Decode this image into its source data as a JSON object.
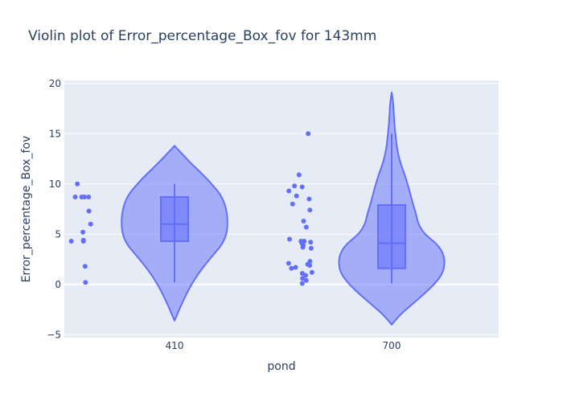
{
  "chart_data": {
    "type": "violin",
    "title": "Violin plot of Error_percentage_Box_fov for 143mm",
    "xlabel": "pond",
    "ylabel": "Error_percentage_Box_fov",
    "categories": [
      "410",
      "700"
    ],
    "ylim": [
      -5.3,
      20.3
    ],
    "yticks": [
      -5,
      0,
      5,
      10,
      15,
      20
    ],
    "grid": true,
    "points_shown": "all",
    "colors": {
      "plot_bg": "#e5ecf6",
      "grid": "#ffffff",
      "violin_fill": "#636efa",
      "violin_line": "#636efa",
      "text": "#2a3f5f"
    },
    "groups": [
      {
        "category": "410",
        "points": [
          8.7,
          8.7,
          8.7,
          8.7,
          10.0,
          6.0,
          7.3,
          5.2,
          4.3,
          4.4,
          4.3,
          1.8,
          0.2
        ],
        "box": {
          "q1": 4.3,
          "median": 6.0,
          "q3": 8.7,
          "whisker_low": 0.2,
          "whisker_high": 10.0
        },
        "kde_range": [
          -3.6,
          13.8
        ],
        "density": [
          [
            -3.6,
            0.0
          ],
          [
            -3.0,
            0.05
          ],
          [
            -2.0,
            0.13
          ],
          [
            -1.0,
            0.22
          ],
          [
            0.0,
            0.32
          ],
          [
            1.0,
            0.44
          ],
          [
            2.0,
            0.58
          ],
          [
            3.0,
            0.74
          ],
          [
            4.0,
            0.9
          ],
          [
            5.0,
            0.98
          ],
          [
            6.0,
            1.0
          ],
          [
            7.0,
            0.99
          ],
          [
            8.0,
            0.95
          ],
          [
            9.0,
            0.86
          ],
          [
            10.0,
            0.7
          ],
          [
            11.0,
            0.52
          ],
          [
            12.0,
            0.32
          ],
          [
            13.0,
            0.14
          ],
          [
            13.5,
            0.05
          ],
          [
            13.8,
            0.0
          ]
        ]
      },
      {
        "category": "700",
        "points": [
          15.0,
          10.9,
          9.8,
          9.7,
          9.3,
          8.8,
          8.5,
          8.0,
          7.4,
          6.3,
          5.7,
          4.5,
          4.3,
          4.2,
          4.1,
          4.3,
          3.9,
          3.7,
          3.6,
          2.3,
          2.1,
          2.0,
          1.9,
          1.7,
          1.6,
          1.2,
          1.1,
          0.9,
          0.6,
          0.4,
          0.1
        ],
        "box": {
          "q1": 1.6,
          "median": 4.1,
          "q3": 7.9,
          "whisker_low": 0.1,
          "whisker_high": 15.0
        },
        "kde_range": [
          -4.0,
          19.1
        ],
        "density": [
          [
            -4.0,
            0.0
          ],
          [
            -3.0,
            0.16
          ],
          [
            -2.0,
            0.38
          ],
          [
            -1.0,
            0.6
          ],
          [
            0.0,
            0.8
          ],
          [
            1.0,
            0.95
          ],
          [
            2.0,
            1.0
          ],
          [
            3.0,
            0.98
          ],
          [
            4.0,
            0.86
          ],
          [
            5.0,
            0.62
          ],
          [
            6.0,
            0.5
          ],
          [
            7.0,
            0.46
          ],
          [
            8.0,
            0.4
          ],
          [
            9.0,
            0.35
          ],
          [
            10.0,
            0.3
          ],
          [
            11.0,
            0.24
          ],
          [
            12.0,
            0.17
          ],
          [
            13.0,
            0.12
          ],
          [
            14.0,
            0.09
          ],
          [
            15.0,
            0.07
          ],
          [
            16.0,
            0.05
          ],
          [
            17.0,
            0.04
          ],
          [
            18.0,
            0.03
          ],
          [
            19.1,
            0.0
          ]
        ]
      }
    ]
  }
}
